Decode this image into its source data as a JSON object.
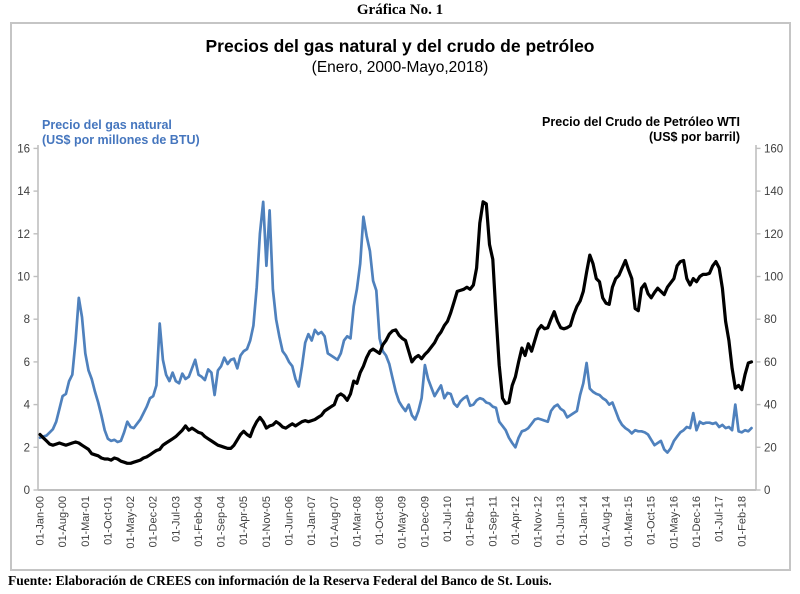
{
  "header": {
    "title": "Gráfica No. 1"
  },
  "chart": {
    "title": "Precios del gas natural y del crudo de petróleo",
    "subtitle": "(Enero, 2000-Mayo,2018)",
    "left_series_label_line1": "Precio del gas natural",
    "left_series_label_line2": "(US$ por millones de BTU)",
    "right_series_label_line1": "Precio del Crudo de Petróleo WTI",
    "right_series_label_line2": "(US$ por barril)"
  },
  "footer": {
    "source": "Fuente: Elaboración de CREES con información de la Reserva Federal del Banco de St. Louis."
  },
  "colors": {
    "gas_line": "#4f81bd",
    "wti_line": "#000000",
    "axis_line": "#bfbfbf",
    "tick_text": "#3f3f3f",
    "box_border": "#c5c5c5"
  },
  "chart_data": {
    "type": "line",
    "title": "Precios del gas natural y del crudo de petróleo",
    "subtitle": "(Enero, 2000-Mayo,2018)",
    "x_unit": "month",
    "x_start": "2000-01",
    "x_end": "2018-05",
    "x_tick_labels": [
      "01-Jan-00",
      "01-Aug-00",
      "01-Mar-01",
      "01-Oct-01",
      "01-May-02",
      "01-Dec-02",
      "01-Jul-03",
      "01-Feb-04",
      "01-Sep-04",
      "01-Apr-05",
      "01-Nov-05",
      "01-Jun-06",
      "01-Jan-07",
      "01-Aug-07",
      "01-Mar-08",
      "01-Oct-08",
      "01-May-09",
      "01-Dec-09",
      "01-Jul-10",
      "01-Feb-11",
      "01-Sep-11",
      "01-Apr-12",
      "01-Nov-12",
      "01-Jun-13",
      "01-Jan-14",
      "01-Aug-14",
      "01-Mar-15",
      "01-Oct-15",
      "01-May-16",
      "01-Dec-16",
      "01-Jul-17",
      "01-Feb-18"
    ],
    "x_tick_interval_months": 7,
    "left_axis": {
      "label": "Precio del gas natural (US$ por millones de BTU)",
      "min": 0,
      "max": 16,
      "step": 2,
      "ticks": [
        "0",
        "2",
        "4",
        "6",
        "8",
        "10",
        "12",
        "14",
        "16"
      ]
    },
    "right_axis": {
      "label": "Precio del Crudo de Petróleo WTI (US$ por barril)",
      "min": 0,
      "max": 160,
      "step": 20,
      "ticks": [
        "0",
        "20",
        "40",
        "60",
        "80",
        "100",
        "120",
        "140",
        "160"
      ]
    },
    "grid": false,
    "legend_position": "top-inside-as-text-labels",
    "series": [
      {
        "name": "Precio del gas natural",
        "units": "US$ por millones de BTU",
        "axis": "left",
        "color": "#4f81bd",
        "stroke_width": 2.7,
        "values": [
          2.45,
          2.5,
          2.55,
          2.7,
          2.85,
          3.2,
          3.8,
          4.4,
          4.5,
          5.1,
          5.4,
          7.0,
          9.0,
          8.1,
          6.4,
          5.6,
          5.2,
          4.6,
          4.1,
          3.5,
          2.8,
          2.4,
          2.3,
          2.35,
          2.25,
          2.3,
          2.7,
          3.2,
          2.95,
          2.9,
          3.1,
          3.3,
          3.6,
          3.9,
          4.3,
          4.4,
          4.9,
          7.8,
          6.1,
          5.4,
          5.1,
          5.5,
          5.1,
          5.0,
          5.45,
          5.2,
          5.3,
          5.7,
          6.1,
          5.4,
          5.3,
          5.15,
          5.65,
          5.5,
          4.45,
          5.6,
          5.8,
          6.2,
          5.9,
          6.1,
          6.15,
          5.7,
          6.3,
          6.5,
          6.6,
          7.0,
          7.7,
          9.5,
          12.0,
          13.5,
          10.5,
          13.1,
          9.4,
          8.0,
          7.2,
          6.5,
          6.3,
          6.0,
          5.8,
          5.2,
          4.85,
          5.8,
          6.9,
          7.3,
          7.0,
          7.5,
          7.3,
          7.4,
          7.2,
          6.4,
          6.3,
          6.2,
          6.1,
          6.4,
          7.0,
          7.2,
          7.1,
          8.6,
          9.4,
          10.6,
          12.8,
          11.9,
          11.2,
          9.8,
          9.35,
          7.1,
          6.5,
          6.3,
          5.9,
          5.25,
          4.6,
          4.15,
          3.9,
          3.7,
          4.0,
          3.5,
          3.3,
          3.7,
          4.3,
          5.85,
          5.2,
          4.8,
          4.4,
          4.65,
          4.9,
          4.3,
          4.55,
          4.5,
          4.05,
          3.9,
          4.15,
          4.3,
          4.4,
          3.95,
          4.0,
          4.2,
          4.3,
          4.25,
          4.1,
          4.05,
          3.9,
          3.85,
          3.2,
          3.0,
          2.8,
          2.45,
          2.2,
          2.0,
          2.45,
          2.75,
          2.8,
          2.9,
          3.1,
          3.3,
          3.35,
          3.3,
          3.25,
          3.2,
          3.7,
          3.9,
          4.0,
          3.8,
          3.7,
          3.4,
          3.5,
          3.6,
          3.7,
          4.45,
          5.0,
          5.95,
          4.75,
          4.6,
          4.5,
          4.45,
          4.3,
          4.2,
          4.0,
          4.1,
          3.7,
          3.3,
          3.05,
          2.9,
          2.8,
          2.65,
          2.8,
          2.75,
          2.75,
          2.7,
          2.6,
          2.35,
          2.1,
          2.2,
          2.3,
          1.9,
          1.75,
          1.95,
          2.3,
          2.5,
          2.7,
          2.8,
          2.95,
          2.9,
          3.6,
          2.8,
          3.2,
          3.1,
          3.15,
          3.15,
          3.1,
          3.15,
          2.95,
          3.05,
          2.9,
          2.95,
          2.8,
          4.0,
          2.75,
          2.7,
          2.8,
          2.75,
          2.9
        ]
      },
      {
        "name": "Precio del Crudo de Petróleo WTI",
        "units": "US$ por barril",
        "axis": "right",
        "color": "#000000",
        "stroke_width": 3.2,
        "values": [
          26,
          24.5,
          23,
          21.5,
          21,
          21.5,
          22,
          21.5,
          21,
          21.5,
          22,
          22.5,
          22,
          21,
          20,
          19,
          17,
          16.5,
          16,
          15,
          14.5,
          14.5,
          14,
          15,
          14.5,
          13.5,
          13,
          12.5,
          12.5,
          13,
          13.5,
          14,
          15,
          15.5,
          16.5,
          17.5,
          18.5,
          19,
          21,
          22,
          23,
          24,
          25,
          26.5,
          28,
          30,
          28,
          29,
          28,
          27,
          26.5,
          25,
          24,
          23,
          22,
          21,
          20.5,
          20,
          19.5,
          19.5,
          21,
          23.5,
          26,
          27.5,
          26,
          25,
          29,
          32,
          34,
          32,
          29,
          30,
          30.5,
          32,
          31,
          29.5,
          29,
          30,
          31,
          30,
          31,
          32,
          32.5,
          32,
          32.5,
          33,
          34,
          35,
          37,
          38,
          39,
          40,
          44,
          45,
          44,
          42,
          45,
          51,
          50,
          55,
          58,
          62,
          65,
          66,
          65,
          64,
          68,
          70,
          73,
          74.5,
          75,
          72.5,
          71,
          70,
          65,
          60,
          62,
          63,
          61.5,
          63.5,
          65,
          67,
          69,
          72,
          74,
          77,
          79,
          83,
          88,
          93,
          93.5,
          94,
          95,
          94,
          96,
          104,
          125,
          135,
          134,
          115,
          108,
          82,
          58.5,
          43,
          40.5,
          41,
          49,
          53,
          60,
          66.5,
          63,
          68.5,
          65,
          70,
          75,
          77,
          75.5,
          76,
          80,
          83.5,
          79,
          76,
          75.5,
          76,
          77,
          82,
          86,
          88.5,
          93,
          102,
          110,
          106,
          99,
          97.5,
          90,
          87.5,
          87,
          95,
          99,
          100.5,
          104,
          107.5,
          103,
          99,
          85,
          84,
          94.5,
          96.5,
          92,
          90,
          92.5,
          94.5,
          93,
          91.5,
          95,
          97,
          99,
          105,
          107,
          107.5,
          99,
          96,
          99,
          97.5,
          100,
          101,
          101,
          101.5,
          105,
          107,
          104,
          94.5,
          79,
          70,
          57,
          47.7,
          49,
          47,
          54,
          59.5,
          60
        ]
      }
    ]
  }
}
